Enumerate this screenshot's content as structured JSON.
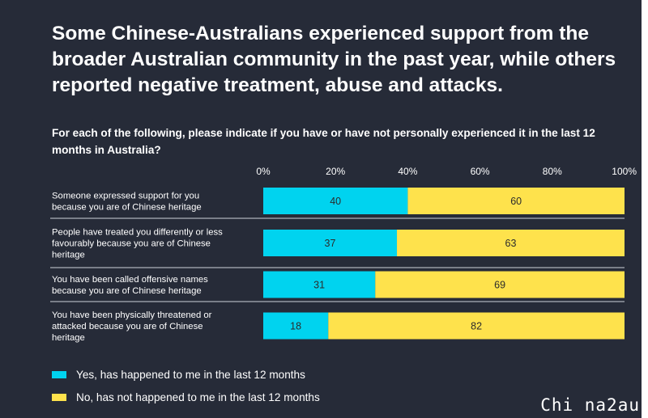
{
  "title": "Some Chinese-Australians experienced support from the broader Australian community in the past year, while others reported negative treatment, abuse and attacks.",
  "question": "For each of the following, please indicate if you have or have not personally experienced it in the last 12 months in Australia?",
  "watermark": "Chi na2au",
  "colors": {
    "background": "#262b38",
    "yes": "#00d3ef",
    "no": "#fee24c",
    "text": "#ffffff"
  },
  "chart_data": {
    "type": "bar",
    "orientation": "horizontal",
    "stacked": true,
    "xlim": [
      0,
      100
    ],
    "ticks": [
      "0%",
      "20%",
      "40%",
      "60%",
      "80%",
      "100%"
    ],
    "tick_values": [
      0,
      20,
      40,
      60,
      80,
      100
    ],
    "categories": [
      [
        "Someone expressed support for you",
        "because you are of Chinese heritage"
      ],
      [
        "People have treated you differently or less",
        "favourably because you are of Chinese",
        "heritage"
      ],
      [
        "You have been called offensive names",
        "because you are of Chinese heritage"
      ],
      [
        "You have been physically threatened or",
        "attacked because you are of Chinese",
        "heritage"
      ]
    ],
    "series": [
      {
        "name": "Yes, has happened to me in the last 12 months",
        "values": [
          40,
          37,
          31,
          18
        ]
      },
      {
        "name": "No, has not happened to me in the last 12 months",
        "values": [
          60,
          63,
          69,
          82
        ]
      }
    ],
    "legend_position": "bottom-left",
    "grid": false
  }
}
